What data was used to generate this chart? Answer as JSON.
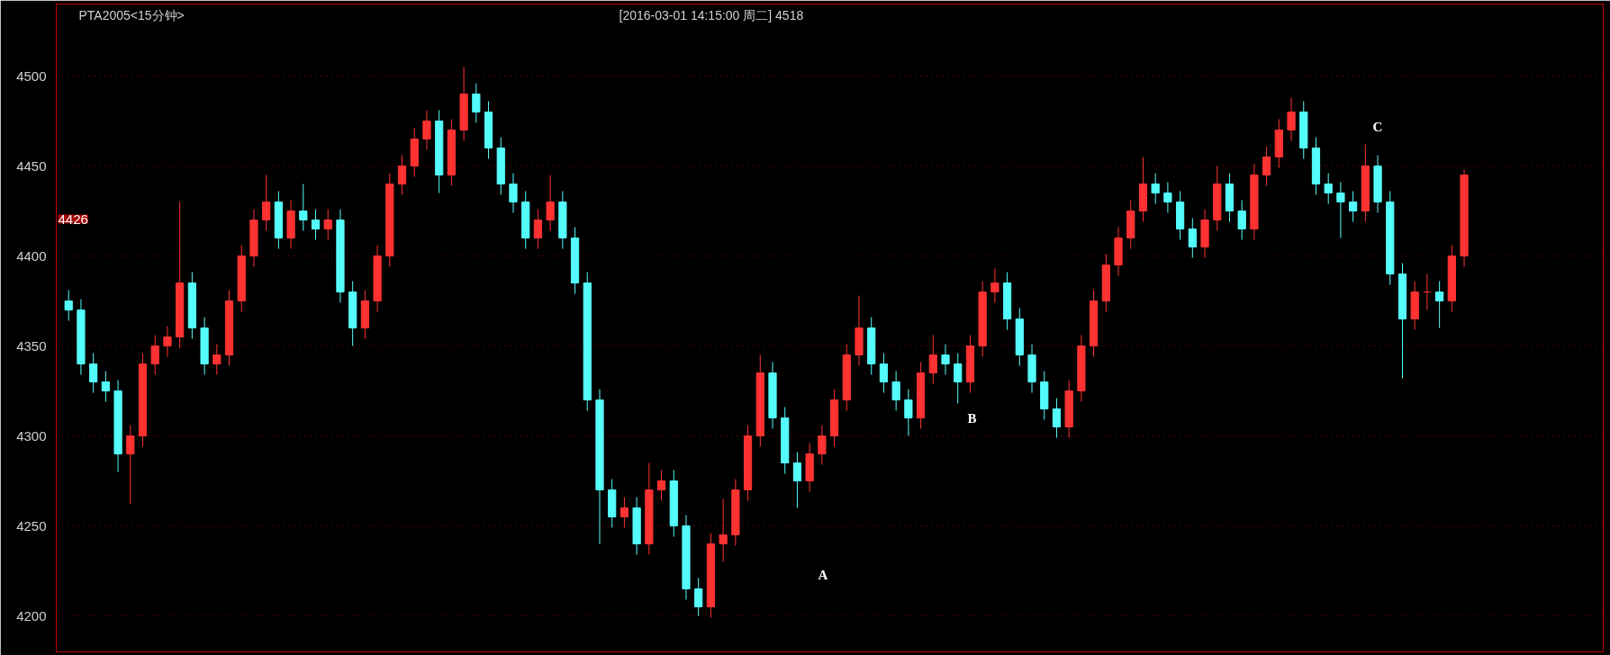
{
  "chart_data": {
    "type": "candlestick",
    "title": "PTA2005<15分钟>",
    "subtitle": "[2016-03-01  14:15:00 周二]    4518",
    "categories": [
      null,
      null,
      null,
      null,
      null,
      null,
      null,
      null,
      null,
      null,
      null,
      null,
      null,
      null,
      null,
      null,
      null,
      null,
      null,
      null,
      null,
      null,
      null,
      null,
      null,
      null,
      null,
      null,
      null,
      null,
      null,
      null,
      null,
      null,
      null,
      null,
      null,
      null,
      null,
      null,
      null,
      null,
      null,
      null,
      null,
      null,
      null,
      null,
      null,
      null,
      null,
      null,
      null,
      null,
      null,
      null,
      null,
      null,
      null,
      null,
      null,
      null,
      null,
      null,
      null,
      null,
      null,
      null,
      null,
      null,
      null,
      null,
      null,
      null,
      null,
      null,
      null,
      null,
      null,
      null,
      null,
      null,
      null,
      null,
      null,
      null,
      null,
      null,
      null,
      null,
      null,
      null,
      null,
      null,
      null,
      null,
      null,
      null,
      null,
      null,
      null,
      null,
      null,
      null,
      null,
      null,
      null,
      null,
      null,
      null,
      null,
      null,
      null,
      null
    ],
    "ohlc": [
      [
        4375,
        4381,
        4364,
        4370
      ],
      [
        4370,
        4376,
        4334,
        4340
      ],
      [
        4340,
        4346,
        4324,
        4330
      ],
      [
        4330,
        4336,
        4319,
        4325
      ],
      [
        4325,
        4331,
        4280,
        4290
      ],
      [
        4290,
        4306,
        4262,
        4300
      ],
      [
        4300,
        4346,
        4294,
        4340
      ],
      [
        4340,
        4356,
        4334,
        4350
      ],
      [
        4350,
        4361,
        4344,
        4355
      ],
      [
        4355,
        4430,
        4349,
        4385
      ],
      [
        4385,
        4391,
        4354,
        4360
      ],
      [
        4360,
        4366,
        4334,
        4340
      ],
      [
        4340,
        4351,
        4334,
        4345
      ],
      [
        4345,
        4381,
        4339,
        4375
      ],
      [
        4375,
        4406,
        4369,
        4400
      ],
      [
        4400,
        4426,
        4394,
        4420
      ],
      [
        4420,
        4445,
        4414,
        4430
      ],
      [
        4430,
        4436,
        4404,
        4410
      ],
      [
        4410,
        4431,
        4404,
        4425
      ],
      [
        4425,
        4440,
        4414,
        4420
      ],
      [
        4420,
        4426,
        4409,
        4415
      ],
      [
        4415,
        4426,
        4409,
        4420
      ],
      [
        4420,
        4426,
        4374,
        4380
      ],
      [
        4380,
        4386,
        4350,
        4360
      ],
      [
        4360,
        4381,
        4354,
        4375
      ],
      [
        4375,
        4406,
        4369,
        4400
      ],
      [
        4400,
        4446,
        4394,
        4440
      ],
      [
        4440,
        4456,
        4434,
        4450
      ],
      [
        4450,
        4471,
        4444,
        4465
      ],
      [
        4465,
        4481,
        4459,
        4475
      ],
      [
        4475,
        4481,
        4435,
        4445
      ],
      [
        4445,
        4476,
        4439,
        4470
      ],
      [
        4470,
        4505,
        4464,
        4490
      ],
      [
        4490,
        4496,
        4474,
        4480
      ],
      [
        4480,
        4486,
        4454,
        4460
      ],
      [
        4460,
        4466,
        4434,
        4440
      ],
      [
        4440,
        4446,
        4424,
        4430
      ],
      [
        4430,
        4436,
        4404,
        4410
      ],
      [
        4410,
        4426,
        4404,
        4420
      ],
      [
        4420,
        4445,
        4414,
        4430
      ],
      [
        4430,
        4436,
        4404,
        4410
      ],
      [
        4410,
        4416,
        4379,
        4385
      ],
      [
        4385,
        4391,
        4314,
        4320
      ],
      [
        4320,
        4326,
        4240,
        4270
      ],
      [
        4270,
        4276,
        4249,
        4255
      ],
      [
        4255,
        4266,
        4249,
        4260
      ],
      [
        4260,
        4266,
        4234,
        4240
      ],
      [
        4240,
        4285,
        4234,
        4270
      ],
      [
        4270,
        4281,
        4264,
        4275
      ],
      [
        4275,
        4281,
        4244,
        4250
      ],
      [
        4250,
        4256,
        4209,
        4215
      ],
      [
        4215,
        4221,
        4200,
        4205
      ],
      [
        4205,
        4246,
        4199,
        4240
      ],
      [
        4240,
        4265,
        4230,
        4245
      ],
      [
        4245,
        4276,
        4239,
        4270
      ],
      [
        4270,
        4306,
        4264,
        4300
      ],
      [
        4300,
        4345,
        4294,
        4335
      ],
      [
        4335,
        4341,
        4304,
        4310
      ],
      [
        4310,
        4316,
        4279,
        4285
      ],
      [
        4285,
        4291,
        4260,
        4275
      ],
      [
        4275,
        4296,
        4269,
        4290
      ],
      [
        4290,
        4306,
        4284,
        4300
      ],
      [
        4300,
        4326,
        4294,
        4320
      ],
      [
        4320,
        4351,
        4314,
        4345
      ],
      [
        4345,
        4378,
        4339,
        4360
      ],
      [
        4360,
        4366,
        4334,
        4340
      ],
      [
        4340,
        4346,
        4324,
        4330
      ],
      [
        4330,
        4336,
        4314,
        4320
      ],
      [
        4320,
        4326,
        4300,
        4310
      ],
      [
        4310,
        4341,
        4304,
        4335
      ],
      [
        4335,
        4356,
        4329,
        4345
      ],
      [
        4345,
        4351,
        4334,
        4340
      ],
      [
        4340,
        4346,
        4318,
        4330
      ],
      [
        4330,
        4356,
        4324,
        4350
      ],
      [
        4350,
        4386,
        4344,
        4380
      ],
      [
        4380,
        4393,
        4374,
        4385
      ],
      [
        4385,
        4391,
        4359,
        4365
      ],
      [
        4365,
        4371,
        4339,
        4345
      ],
      [
        4345,
        4351,
        4324,
        4330
      ],
      [
        4330,
        4336,
        4309,
        4315
      ],
      [
        4315,
        4321,
        4299,
        4305
      ],
      [
        4305,
        4331,
        4299,
        4325
      ],
      [
        4325,
        4356,
        4319,
        4350
      ],
      [
        4350,
        4381,
        4344,
        4375
      ],
      [
        4375,
        4401,
        4369,
        4395
      ],
      [
        4395,
        4416,
        4389,
        4410
      ],
      [
        4410,
        4431,
        4404,
        4425
      ],
      [
        4425,
        4455,
        4419,
        4440
      ],
      [
        4440,
        4446,
        4429,
        4435
      ],
      [
        4435,
        4441,
        4424,
        4430
      ],
      [
        4430,
        4436,
        4409,
        4415
      ],
      [
        4415,
        4421,
        4399,
        4405
      ],
      [
        4405,
        4426,
        4399,
        4420
      ],
      [
        4420,
        4450,
        4414,
        4440
      ],
      [
        4440,
        4446,
        4419,
        4425
      ],
      [
        4425,
        4431,
        4409,
        4415
      ],
      [
        4415,
        4451,
        4409,
        4445
      ],
      [
        4445,
        4461,
        4439,
        4455
      ],
      [
        4455,
        4476,
        4449,
        4470
      ],
      [
        4470,
        4488,
        4464,
        4480
      ],
      [
        4480,
        4486,
        4454,
        4460
      ],
      [
        4460,
        4466,
        4434,
        4440
      ],
      [
        4440,
        4446,
        4429,
        4435
      ],
      [
        4435,
        4441,
        4410,
        4430
      ],
      [
        4430,
        4436,
        4419,
        4425
      ],
      [
        4425,
        4462,
        4419,
        4450
      ],
      [
        4450,
        4456,
        4424,
        4430
      ],
      [
        4430,
        4436,
        4384,
        4390
      ],
      [
        4390,
        4396,
        4332,
        4365
      ],
      [
        4365,
        4386,
        4359,
        4380
      ],
      [
        4380,
        4390,
        4370,
        4380
      ],
      [
        4380,
        4386,
        4360,
        4375
      ],
      [
        4375,
        4406,
        4369,
        4400
      ],
      [
        4400,
        4448,
        4394,
        4445
      ]
    ],
    "colors": [
      "#54fcfc",
      "#54fcfc",
      "#54fcfc",
      "#54fcfc",
      "#54fcfc",
      "#ff3232",
      "#ff3232",
      "#ff3232",
      "#ff3232",
      "#ff3232",
      "#54fcfc",
      "#54fcfc",
      "#ff3232",
      "#ff3232",
      "#ff3232",
      "#ff3232",
      "#ff3232",
      "#54fcfc",
      "#ff3232",
      "#54fcfc",
      "#54fcfc",
      "#ff3232",
      "#54fcfc",
      "#54fcfc",
      "#ff3232",
      "#ff3232",
      "#ff3232",
      "#ff3232",
      "#ff3232",
      "#ff3232",
      "#54fcfc",
      "#ff3232",
      "#ff3232",
      "#54fcfc",
      "#54fcfc",
      "#54fcfc",
      "#54fcfc",
      "#54fcfc",
      "#ff3232",
      "#ff3232",
      "#54fcfc",
      "#54fcfc",
      "#54fcfc",
      "#54fcfc",
      "#54fcfc",
      "#ff3232",
      "#54fcfc",
      "#ff3232",
      "#ff3232",
      "#54fcfc",
      "#54fcfc",
      "#54fcfc",
      "#ff3232",
      "#ff3232",
      "#ff3232",
      "#ff3232",
      "#ff3232",
      "#54fcfc",
      "#54fcfc",
      "#54fcfc",
      "#ff3232",
      "#ff3232",
      "#ff3232",
      "#ff3232",
      "#ff3232",
      "#54fcfc",
      "#54fcfc",
      "#54fcfc",
      "#54fcfc",
      "#ff3232",
      "#ff3232",
      "#54fcfc",
      "#54fcfc",
      "#ff3232",
      "#ff3232",
      "#ff3232",
      "#54fcfc",
      "#54fcfc",
      "#54fcfc",
      "#54fcfc",
      "#54fcfc",
      "#ff3232",
      "#ff3232",
      "#ff3232",
      "#ff3232",
      "#ff3232",
      "#ff3232",
      "#ff3232",
      "#54fcfc",
      "#54fcfc",
      "#54fcfc",
      "#54fcfc",
      "#ff3232",
      "#ff3232",
      "#54fcfc",
      "#54fcfc",
      "#ff3232",
      "#ff3232",
      "#ff3232",
      "#ff3232",
      "#54fcfc",
      "#54fcfc",
      "#54fcfc",
      "#54fcfc",
      "#54fcfc",
      "#ff3232",
      "#54fcfc",
      "#54fcfc",
      "#54fcfc",
      "#ff3232",
      "#ff3232",
      "#54fcfc",
      "#ff3232",
      "#ff3232"
    ],
    "ylim": [
      4180,
      4540
    ],
    "yticks": [
      4200,
      4250,
      4300,
      4350,
      4400,
      4450,
      4500
    ],
    "grid": "y",
    "tick_labels": "y",
    "annotations": [
      "4426",
      "A",
      "B",
      "C"
    ]
  }
}
